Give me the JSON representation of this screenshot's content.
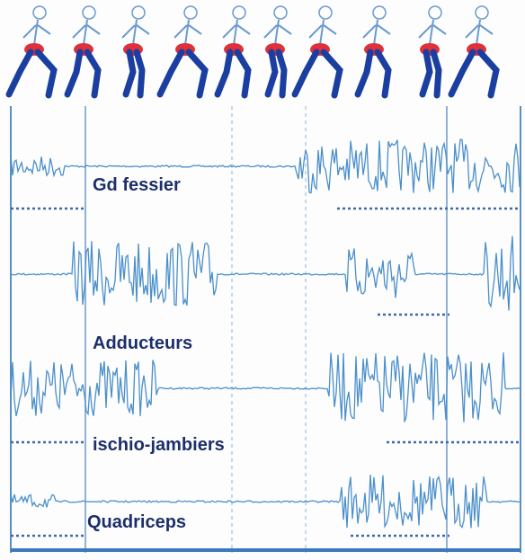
{
  "labels": [
    "Gd fessier",
    "Adducteurs",
    "ischio-jambiers",
    "Quadriceps"
  ]
}
